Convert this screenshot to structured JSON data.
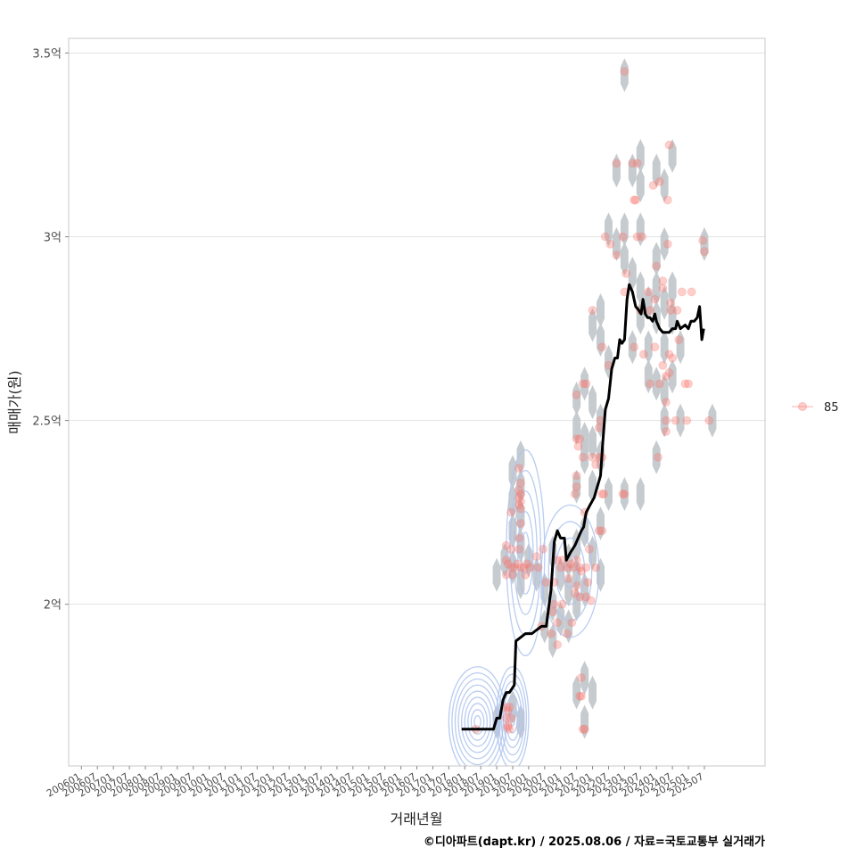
{
  "chart_data": {
    "type": "scatter",
    "xlabel": "거래년월",
    "ylabel": "매매가(원)",
    "caption": "©디아파트(dapt.kr) / 2025.08.06 / 자료=국토교통부 실거래가",
    "x_tick_labels": [
      "200601",
      "200607",
      "200701",
      "200707",
      "200801",
      "200807",
      "200901",
      "200907",
      "201001",
      "201007",
      "201101",
      "201107",
      "201201",
      "201207",
      "201301",
      "201307",
      "201401",
      "201407",
      "201501",
      "201507",
      "201601",
      "201607",
      "201701",
      "201707",
      "201801",
      "201807",
      "201901",
      "201907",
      "202001",
      "202007",
      "202101",
      "202107",
      "202201",
      "202207",
      "202301",
      "202307",
      "202401",
      "202407",
      "202501",
      "202507"
    ],
    "xlim": [
      2005.6,
      2027.4
    ],
    "y_ticks": [
      {
        "value": 2.0,
        "label": "2억"
      },
      {
        "value": 2.5,
        "label": "2.5억"
      },
      {
        "value": 3.0,
        "label": "3억"
      },
      {
        "value": 3.5,
        "label": "3.5억"
      }
    ],
    "ylim": [
      1.56,
      3.54
    ],
    "y_unit": "억원",
    "legend": {
      "label": "85",
      "position": "right"
    },
    "colors": {
      "points": "#f8766d",
      "hex": "#c3c8cc",
      "trend": "#000000",
      "contour": "#aec4ee",
      "grid": "#e3e3e3"
    },
    "trend_line": [
      [
        2017.9,
        1.66
      ],
      [
        2018.9,
        1.66
      ],
      [
        2019.0,
        1.69
      ],
      [
        2019.1,
        1.69
      ],
      [
        2019.2,
        1.74
      ],
      [
        2019.3,
        1.76
      ],
      [
        2019.4,
        1.76
      ],
      [
        2019.55,
        1.78
      ],
      [
        2019.6,
        1.9
      ],
      [
        2019.75,
        1.91
      ],
      [
        2019.9,
        1.92
      ],
      [
        2020.1,
        1.92
      ],
      [
        2020.25,
        1.93
      ],
      [
        2020.4,
        1.94
      ],
      [
        2020.55,
        1.94
      ],
      [
        2020.7,
        2.04
      ],
      [
        2020.8,
        2.17
      ],
      [
        2020.9,
        2.2
      ],
      [
        2021.0,
        2.18
      ],
      [
        2021.12,
        2.18
      ],
      [
        2021.18,
        2.12
      ],
      [
        2021.3,
        2.14
      ],
      [
        2021.45,
        2.16
      ],
      [
        2021.55,
        2.18
      ],
      [
        2021.65,
        2.2
      ],
      [
        2021.72,
        2.21
      ],
      [
        2021.8,
        2.25
      ],
      [
        2021.92,
        2.27
      ],
      [
        2022.05,
        2.29
      ],
      [
        2022.15,
        2.32
      ],
      [
        2022.25,
        2.35
      ],
      [
        2022.32,
        2.44
      ],
      [
        2022.4,
        2.53
      ],
      [
        2022.5,
        2.56
      ],
      [
        2022.6,
        2.64
      ],
      [
        2022.7,
        2.67
      ],
      [
        2022.78,
        2.67
      ],
      [
        2022.85,
        2.72
      ],
      [
        2022.92,
        2.71
      ],
      [
        2023.0,
        2.72
      ],
      [
        2023.08,
        2.83
      ],
      [
        2023.15,
        2.87
      ],
      [
        2023.25,
        2.85
      ],
      [
        2023.35,
        2.81
      ],
      [
        2023.45,
        2.8
      ],
      [
        2023.52,
        2.79
      ],
      [
        2023.58,
        2.83
      ],
      [
        2023.65,
        2.79
      ],
      [
        2023.72,
        2.78
      ],
      [
        2023.8,
        2.78
      ],
      [
        2023.88,
        2.77
      ],
      [
        2023.95,
        2.79
      ],
      [
        2024.0,
        2.77
      ],
      [
        2024.1,
        2.75
      ],
      [
        2024.2,
        2.74
      ],
      [
        2024.3,
        2.74
      ],
      [
        2024.4,
        2.74
      ],
      [
        2024.5,
        2.75
      ],
      [
        2024.6,
        2.75
      ],
      [
        2024.65,
        2.77
      ],
      [
        2024.75,
        2.75
      ],
      [
        2024.9,
        2.76
      ],
      [
        2025.0,
        2.75
      ],
      [
        2025.08,
        2.77
      ],
      [
        2025.18,
        2.77
      ],
      [
        2025.28,
        2.78
      ],
      [
        2025.35,
        2.81
      ],
      [
        2025.42,
        2.72
      ],
      [
        2025.48,
        2.75
      ]
    ],
    "hex_bins": [
      [
        2023.0,
        3.44
      ],
      [
        2023.5,
        3.22
      ],
      [
        2022.75,
        3.18
      ],
      [
        2023.25,
        3.18
      ],
      [
        2024.0,
        3.18
      ],
      [
        2024.5,
        3.22
      ],
      [
        2023.5,
        3.14
      ],
      [
        2024.25,
        3.14
      ],
      [
        2022.5,
        3.02
      ],
      [
        2023.0,
        3.02
      ],
      [
        2023.5,
        3.02
      ],
      [
        2022.75,
        2.98
      ],
      [
        2024.25,
        2.98
      ],
      [
        2025.5,
        2.98
      ],
      [
        2023.0,
        2.94
      ],
      [
        2024.0,
        2.94
      ],
      [
        2023.25,
        2.9
      ],
      [
        2024.0,
        2.86
      ],
      [
        2024.5,
        2.86
      ],
      [
        2023.5,
        2.86
      ],
      [
        2023.75,
        2.82
      ],
      [
        2024.25,
        2.82
      ],
      [
        2022.25,
        2.8
      ],
      [
        2023.5,
        2.78
      ],
      [
        2024.0,
        2.78
      ],
      [
        2024.5,
        2.78
      ],
      [
        2022.0,
        2.76
      ],
      [
        2022.25,
        2.72
      ],
      [
        2023.25,
        2.7
      ],
      [
        2023.75,
        2.7
      ],
      [
        2024.25,
        2.7
      ],
      [
        2024.75,
        2.7
      ],
      [
        2022.5,
        2.66
      ],
      [
        2023.75,
        2.62
      ],
      [
        2024.5,
        2.62
      ],
      [
        2024.25,
        2.58
      ],
      [
        2021.75,
        2.6
      ],
      [
        2024.0,
        2.6
      ],
      [
        2021.5,
        2.56
      ],
      [
        2022.0,
        2.55
      ],
      [
        2024.25,
        2.5
      ],
      [
        2024.75,
        2.5
      ],
      [
        2025.75,
        2.5
      ],
      [
        2022.25,
        2.5
      ],
      [
        2021.5,
        2.48
      ],
      [
        2021.75,
        2.45
      ],
      [
        2022.0,
        2.44
      ],
      [
        2024.0,
        2.4
      ],
      [
        2019.75,
        2.4
      ],
      [
        2021.75,
        2.4
      ],
      [
        2022.25,
        2.4
      ],
      [
        2019.5,
        2.36
      ],
      [
        2019.75,
        2.32
      ],
      [
        2021.5,
        2.32
      ],
      [
        2022.0,
        2.32
      ],
      [
        2022.5,
        2.3
      ],
      [
        2023.0,
        2.3
      ],
      [
        2023.5,
        2.3
      ],
      [
        2019.5,
        2.28
      ],
      [
        2019.75,
        2.24
      ],
      [
        2022.25,
        2.22
      ],
      [
        2019.5,
        2.2
      ],
      [
        2021.75,
        2.2
      ],
      [
        2019.75,
        2.16
      ],
      [
        2021.5,
        2.16
      ],
      [
        2019.25,
        2.12
      ],
      [
        2019.5,
        2.1
      ],
      [
        2020.0,
        2.12
      ],
      [
        2020.75,
        2.14
      ],
      [
        2021.25,
        2.12
      ],
      [
        2022.0,
        2.14
      ],
      [
        2019.0,
        2.08
      ],
      [
        2019.75,
        2.06
      ],
      [
        2020.25,
        2.08
      ],
      [
        2021.0,
        2.08
      ],
      [
        2021.5,
        2.08
      ],
      [
        2022.25,
        2.08
      ],
      [
        2020.5,
        2.04
      ],
      [
        2021.25,
        2.04
      ],
      [
        2021.75,
        2.04
      ],
      [
        2020.75,
        2.0
      ],
      [
        2021.5,
        2.0
      ],
      [
        2021.0,
        1.96
      ],
      [
        2020.5,
        1.94
      ],
      [
        2021.25,
        1.94
      ],
      [
        2020.75,
        1.9
      ],
      [
        2021.75,
        1.8
      ],
      [
        2021.5,
        1.76
      ],
      [
        2022.0,
        1.76
      ],
      [
        2019.5,
        1.72
      ],
      [
        2019.0,
        1.68
      ],
      [
        2019.75,
        1.68
      ],
      [
        2021.75,
        1.68
      ]
    ],
    "points": [
      [
        2023.0,
        3.45
      ],
      [
        2022.75,
        3.2
      ],
      [
        2023.25,
        3.2
      ],
      [
        2023.4,
        3.2
      ],
      [
        2023.3,
        3.1
      ],
      [
        2023.35,
        3.1
      ],
      [
        2023.9,
        3.14
      ],
      [
        2024.1,
        3.15
      ],
      [
        2024.4,
        3.25
      ],
      [
        2024.35,
        3.1
      ],
      [
        2022.4,
        3.0
      ],
      [
        2022.55,
        2.98
      ],
      [
        2022.95,
        3.0
      ],
      [
        2023.4,
        3.0
      ],
      [
        2023.55,
        3.0
      ],
      [
        2022.75,
        2.95
      ],
      [
        2024.35,
        2.98
      ],
      [
        2025.45,
        2.99
      ],
      [
        2025.5,
        2.96
      ],
      [
        2023.05,
        2.9
      ],
      [
        2024.0,
        2.92
      ],
      [
        2024.2,
        2.88
      ],
      [
        2023.75,
        2.85
      ],
      [
        2023.95,
        2.83
      ],
      [
        2024.2,
        2.86
      ],
      [
        2024.45,
        2.82
      ],
      [
        2024.8,
        2.85
      ],
      [
        2025.1,
        2.85
      ],
      [
        2023.0,
        2.85
      ],
      [
        2022.0,
        2.8
      ],
      [
        2023.5,
        2.8
      ],
      [
        2023.8,
        2.8
      ],
      [
        2024.45,
        2.8
      ],
      [
        2024.65,
        2.8
      ],
      [
        2022.3,
        2.7
      ],
      [
        2023.3,
        2.7
      ],
      [
        2023.6,
        2.68
      ],
      [
        2023.95,
        2.7
      ],
      [
        2024.2,
        2.65
      ],
      [
        2024.4,
        2.68
      ],
      [
        2024.5,
        2.67
      ],
      [
        2024.7,
        2.72
      ],
      [
        2022.5,
        2.65
      ],
      [
        2024.4,
        2.63
      ],
      [
        2023.8,
        2.6
      ],
      [
        2024.1,
        2.6
      ],
      [
        2024.3,
        2.62
      ],
      [
        2024.9,
        2.6
      ],
      [
        2025.0,
        2.6
      ],
      [
        2021.7,
        2.6
      ],
      [
        2021.8,
        2.6
      ],
      [
        2021.5,
        2.57
      ],
      [
        2024.3,
        2.55
      ],
      [
        2022.25,
        2.5
      ],
      [
        2022.2,
        2.48
      ],
      [
        2024.3,
        2.5
      ],
      [
        2024.6,
        2.5
      ],
      [
        2024.95,
        2.5
      ],
      [
        2025.65,
        2.5
      ],
      [
        2024.3,
        2.47
      ],
      [
        2021.5,
        2.45
      ],
      [
        2021.6,
        2.45
      ],
      [
        2021.55,
        2.43
      ],
      [
        2021.7,
        2.4
      ],
      [
        2022.0,
        2.4
      ],
      [
        2022.1,
        2.38
      ],
      [
        2022.2,
        2.4
      ],
      [
        2022.3,
        2.4
      ],
      [
        2024.05,
        2.4
      ],
      [
        2021.5,
        2.35
      ],
      [
        2021.5,
        2.32
      ],
      [
        2021.45,
        2.3
      ],
      [
        2022.3,
        2.3
      ],
      [
        2022.35,
        2.3
      ],
      [
        2022.95,
        2.3
      ],
      [
        2023.0,
        2.3
      ],
      [
        2021.75,
        2.25
      ],
      [
        2022.2,
        2.2
      ],
      [
        2022.3,
        2.2
      ],
      [
        2019.7,
        2.37
      ],
      [
        2019.75,
        2.33
      ],
      [
        2019.7,
        2.31
      ],
      [
        2019.75,
        2.3
      ],
      [
        2019.7,
        2.29
      ],
      [
        2019.75,
        2.28
      ],
      [
        2019.7,
        2.27
      ],
      [
        2019.75,
        2.26
      ],
      [
        2019.45,
        2.25
      ],
      [
        2019.75,
        2.22
      ],
      [
        2019.7,
        2.18
      ],
      [
        2019.3,
        2.16
      ],
      [
        2019.45,
        2.15
      ],
      [
        2019.7,
        2.15
      ],
      [
        2019.3,
        2.12
      ],
      [
        2019.35,
        2.11
      ],
      [
        2019.45,
        2.1
      ],
      [
        2019.55,
        2.1
      ],
      [
        2019.65,
        2.11
      ],
      [
        2019.75,
        2.1
      ],
      [
        2019.85,
        2.1
      ],
      [
        2019.95,
        2.11
      ],
      [
        2020.05,
        2.1
      ],
      [
        2019.3,
        2.08
      ],
      [
        2019.5,
        2.08
      ],
      [
        2019.9,
        2.08
      ],
      [
        2020.25,
        2.13
      ],
      [
        2020.3,
        2.1
      ],
      [
        2020.45,
        2.15
      ],
      [
        2020.9,
        2.12
      ],
      [
        2021.0,
        2.1
      ],
      [
        2021.05,
        2.12
      ],
      [
        2021.2,
        2.1
      ],
      [
        2021.3,
        2.11
      ],
      [
        2021.4,
        2.1
      ],
      [
        2021.5,
        2.12
      ],
      [
        2021.6,
        2.1
      ],
      [
        2021.65,
        2.09
      ],
      [
        2021.8,
        2.1
      ],
      [
        2021.9,
        2.15
      ],
      [
        2020.55,
        2.06
      ],
      [
        2020.8,
        2.06
      ],
      [
        2021.25,
        2.07
      ],
      [
        2021.5,
        2.05
      ],
      [
        2021.85,
        2.06
      ],
      [
        2022.1,
        2.1
      ],
      [
        2020.8,
        2.0
      ],
      [
        2021.05,
        2.0
      ],
      [
        2021.45,
        2.03
      ],
      [
        2021.6,
        2.02
      ],
      [
        2021.8,
        2.02
      ],
      [
        2021.95,
        2.01
      ],
      [
        2020.75,
        1.98
      ],
      [
        2020.9,
        1.95
      ],
      [
        2021.35,
        1.95
      ],
      [
        2020.4,
        1.94
      ],
      [
        2020.7,
        1.92
      ],
      [
        2021.2,
        1.92
      ],
      [
        2020.9,
        1.89
      ],
      [
        2021.65,
        1.8
      ],
      [
        2021.6,
        1.75
      ],
      [
        2021.65,
        1.75
      ],
      [
        2021.7,
        1.66
      ],
      [
        2021.75,
        1.66
      ],
      [
        2019.3,
        1.72
      ],
      [
        2019.35,
        1.71
      ],
      [
        2019.4,
        1.72
      ],
      [
        2019.3,
        1.69
      ],
      [
        2019.45,
        1.69
      ],
      [
        2019.35,
        1.67
      ],
      [
        2019.4,
        1.66
      ],
      [
        2019.35,
        1.665
      ],
      [
        2018.35,
        1.66
      ]
    ],
    "density_contours": [
      {
        "center": [
          2018.4,
          1.68
        ],
        "half_width": [
          0.9,
          0.15
        ],
        "levels": 9
      },
      {
        "center": [
          2019.5,
          1.69
        ],
        "half_width": [
          0.5,
          0.14
        ],
        "levels": 7
      },
      {
        "center": [
          2019.9,
          2.14
        ],
        "half_width": [
          0.6,
          0.28
        ],
        "levels": 5
      },
      {
        "center": [
          2021.3,
          2.09
        ],
        "half_width": [
          0.9,
          0.18
        ],
        "levels": 4
      }
    ]
  }
}
